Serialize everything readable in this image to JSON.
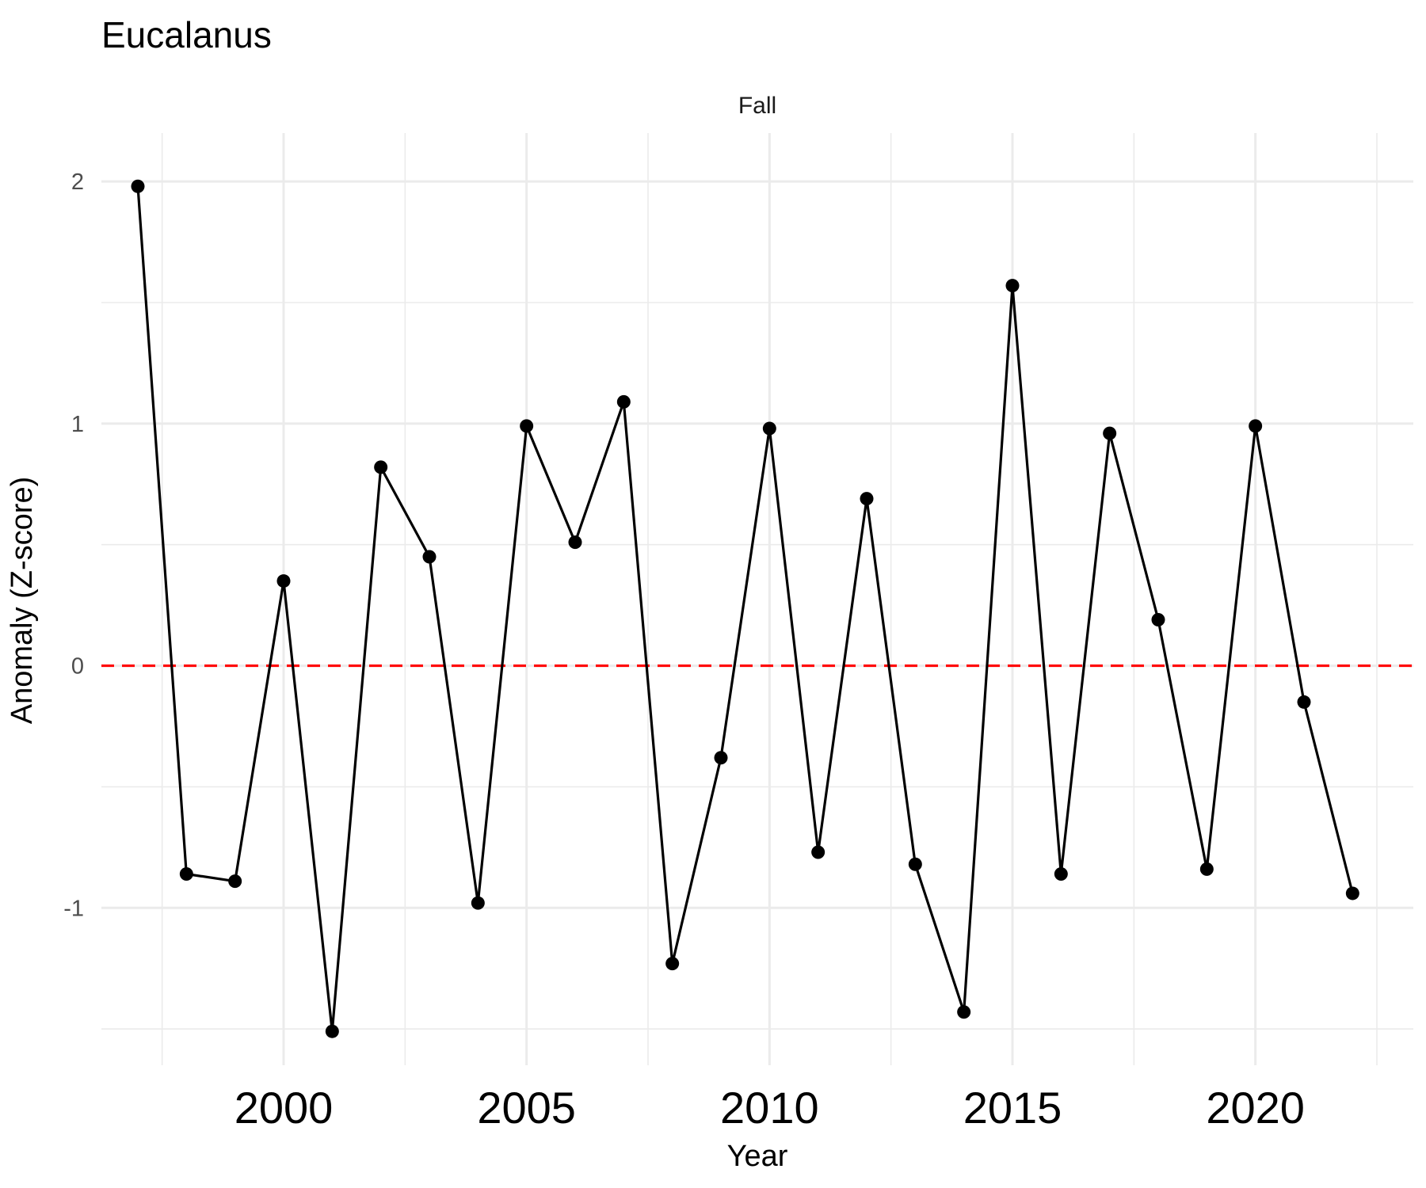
{
  "chart_data": {
    "type": "line",
    "title": "Eucalanus",
    "facet_label": "Fall",
    "xlabel": "Year",
    "ylabel": "Anomaly (Z-score)",
    "xlim": [
      1996.25,
      2023.25
    ],
    "ylim": [
      -1.65,
      2.2
    ],
    "x_ticks": [
      2000,
      2005,
      2010,
      2015,
      2020
    ],
    "x_tick_labels": [
      "2000",
      "2005",
      "2010",
      "2015",
      "2020"
    ],
    "x_minor_ticks": [
      1997.5,
      2002.5,
      2007.5,
      2012.5,
      2017.5,
      2022.5
    ],
    "y_ticks": [
      -1,
      0,
      1,
      2
    ],
    "y_tick_labels": [
      "-1",
      "0",
      "1",
      "2"
    ],
    "y_minor_ticks": [
      -1.5,
      -0.5,
      0.5,
      1.5
    ],
    "grid": true,
    "reference_line": {
      "y": 0,
      "color": "#ff0000",
      "style": "dashed"
    },
    "series": [
      {
        "color": "#000000",
        "x": [
          1997,
          1998,
          1999,
          2000,
          2001,
          2002,
          2003,
          2004,
          2005,
          2006,
          2007,
          2008,
          2009,
          2010,
          2011,
          2012,
          2013,
          2014,
          2015,
          2016,
          2017,
          2018,
          2019,
          2020,
          2021,
          2022
        ],
        "y": [
          1.98,
          -0.86,
          -0.89,
          0.35,
          -1.51,
          0.82,
          0.45,
          -0.98,
          0.99,
          0.51,
          1.09,
          -1.23,
          -0.38,
          0.98,
          -0.77,
          0.69,
          -0.82,
          -1.43,
          1.57,
          -0.86,
          0.96,
          0.19,
          -0.84,
          0.99,
          -0.15,
          -0.94
        ]
      }
    ]
  }
}
